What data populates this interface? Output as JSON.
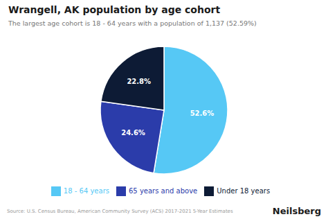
{
  "chart_data": {
    "type": "pie",
    "title": "Wrangell, AK population by age cohort",
    "subtitle": "The largest age cohort is 18 - 64 years with a population of 1,137 (52.59%)",
    "categories": [
      "18 - 64 years",
      "65 years and above",
      "Under 18 years"
    ],
    "values": [
      52.6,
      24.6,
      22.8
    ],
    "value_labels": [
      "52.6%",
      "24.6%",
      "22.8%"
    ],
    "colors": [
      "#56c8f5",
      "#2b3caa",
      "#0d1b35"
    ],
    "data_labels": true,
    "legend": "bottom",
    "annotations": [
      "Source: U.S. Census Bureau, American Community Survey (ACS) 2017-2021 5-Year Estimates",
      "Neilsberg"
    ]
  }
}
